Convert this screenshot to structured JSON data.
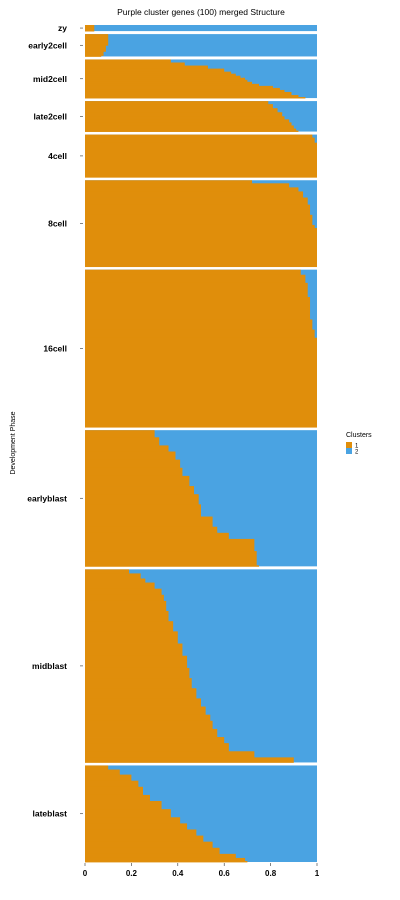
{
  "chart_data": {
    "type": "bar",
    "orientation": "horizontal-stacked-proportion",
    "title": "Purple cluster genes (100) merged Structure",
    "ylabel": "Development Phase",
    "xlabel": "",
    "xlim": [
      0,
      1
    ],
    "x_ticks": [
      "0",
      "0.2",
      "0.4",
      "0.6",
      "0.8",
      "1"
    ],
    "legend": {
      "title": "Clusters",
      "position": "right",
      "entries": [
        {
          "label": "1",
          "color": "#E08E0B"
        },
        {
          "label": "2",
          "color": "#4AA3E2"
        }
      ]
    },
    "phases": [
      {
        "name": "zy",
        "samples": 6,
        "cluster1": [
          [
            1,
            0.04
          ]
        ]
      },
      {
        "name": "early2cell",
        "samples": 22,
        "cluster1": [
          [
            1,
            0.1
          ],
          [
            12,
            0.09
          ],
          [
            18,
            0.08
          ],
          [
            22,
            0.07
          ]
        ]
      },
      {
        "name": "mid2cell",
        "samples": 38,
        "cluster1": [
          [
            1,
            0.37
          ],
          [
            4,
            0.43
          ],
          [
            7,
            0.53
          ],
          [
            10,
            0.6
          ],
          [
            13,
            0.63
          ],
          [
            15,
            0.65
          ],
          [
            17,
            0.67
          ],
          [
            19,
            0.69
          ],
          [
            21,
            0.7
          ],
          [
            23,
            0.72
          ],
          [
            25,
            0.75
          ],
          [
            27,
            0.81
          ],
          [
            29,
            0.84
          ],
          [
            31,
            0.86
          ],
          [
            33,
            0.89
          ],
          [
            36,
            0.92
          ],
          [
            38,
            0.95
          ]
        ]
      },
      {
        "name": "late2cell",
        "samples": 30,
        "cluster1": [
          [
            1,
            0.79
          ],
          [
            4,
            0.81
          ],
          [
            8,
            0.83
          ],
          [
            12,
            0.85
          ],
          [
            16,
            0.86
          ],
          [
            19,
            0.88
          ],
          [
            22,
            0.89
          ],
          [
            25,
            0.9
          ],
          [
            28,
            0.91
          ],
          [
            30,
            0.92
          ]
        ]
      },
      {
        "name": "4cell",
        "samples": 42,
        "cluster1": [
          [
            1,
            0.98
          ],
          [
            4,
            0.99
          ],
          [
            9,
            1.0
          ]
        ]
      },
      {
        "name": "8cell",
        "samples": 85,
        "cluster1": [
          [
            1,
            0.72
          ],
          [
            4,
            0.88
          ],
          [
            8,
            0.92
          ],
          [
            12,
            0.94
          ],
          [
            18,
            0.96
          ],
          [
            25,
            0.97
          ],
          [
            35,
            0.98
          ],
          [
            45,
            0.99
          ],
          [
            48,
            1.0
          ]
        ]
      },
      {
        "name": "16cell",
        "samples": 155,
        "cluster1": [
          [
            1,
            0.93
          ],
          [
            6,
            0.95
          ],
          [
            14,
            0.96
          ],
          [
            28,
            0.97
          ],
          [
            50,
            0.98
          ],
          [
            60,
            0.99
          ],
          [
            68,
            1.0
          ]
        ]
      },
      {
        "name": "earlyblast",
        "samples": 134,
        "cluster1": [
          [
            1,
            0.3
          ],
          [
            8,
            0.32
          ],
          [
            16,
            0.36
          ],
          [
            22,
            0.39
          ],
          [
            30,
            0.41
          ],
          [
            38,
            0.42
          ],
          [
            46,
            0.45
          ],
          [
            56,
            0.47
          ],
          [
            64,
            0.49
          ],
          [
            74,
            0.5
          ],
          [
            86,
            0.55
          ],
          [
            96,
            0.57
          ],
          [
            102,
            0.62
          ],
          [
            108,
            0.73
          ],
          [
            120,
            0.74
          ],
          [
            134,
            0.75
          ]
        ]
      },
      {
        "name": "midblast",
        "samples": 190,
        "cluster1": [
          [
            1,
            0.19
          ],
          [
            5,
            0.24
          ],
          [
            10,
            0.26
          ],
          [
            14,
            0.3
          ],
          [
            20,
            0.33
          ],
          [
            26,
            0.34
          ],
          [
            32,
            0.35
          ],
          [
            42,
            0.36
          ],
          [
            52,
            0.38
          ],
          [
            62,
            0.4
          ],
          [
            74,
            0.42
          ],
          [
            86,
            0.44
          ],
          [
            98,
            0.45
          ],
          [
            108,
            0.46
          ],
          [
            118,
            0.48
          ],
          [
            128,
            0.5
          ],
          [
            136,
            0.52
          ],
          [
            144,
            0.54
          ],
          [
            150,
            0.55
          ],
          [
            158,
            0.57
          ],
          [
            166,
            0.6
          ],
          [
            172,
            0.62
          ],
          [
            180,
            0.73
          ],
          [
            186,
            0.9
          ]
        ]
      },
      {
        "name": "lateblast",
        "samples": 95,
        "cluster1": [
          [
            1,
            0.1
          ],
          [
            5,
            0.15
          ],
          [
            10,
            0.2
          ],
          [
            16,
            0.23
          ],
          [
            22,
            0.25
          ],
          [
            30,
            0.28
          ],
          [
            36,
            0.33
          ],
          [
            44,
            0.37
          ],
          [
            52,
            0.41
          ],
          [
            58,
            0.44
          ],
          [
            64,
            0.48
          ],
          [
            70,
            0.51
          ],
          [
            76,
            0.55
          ],
          [
            82,
            0.58
          ],
          [
            88,
            0.65
          ],
          [
            92,
            0.69
          ],
          [
            95,
            0.7
          ]
        ]
      }
    ]
  }
}
